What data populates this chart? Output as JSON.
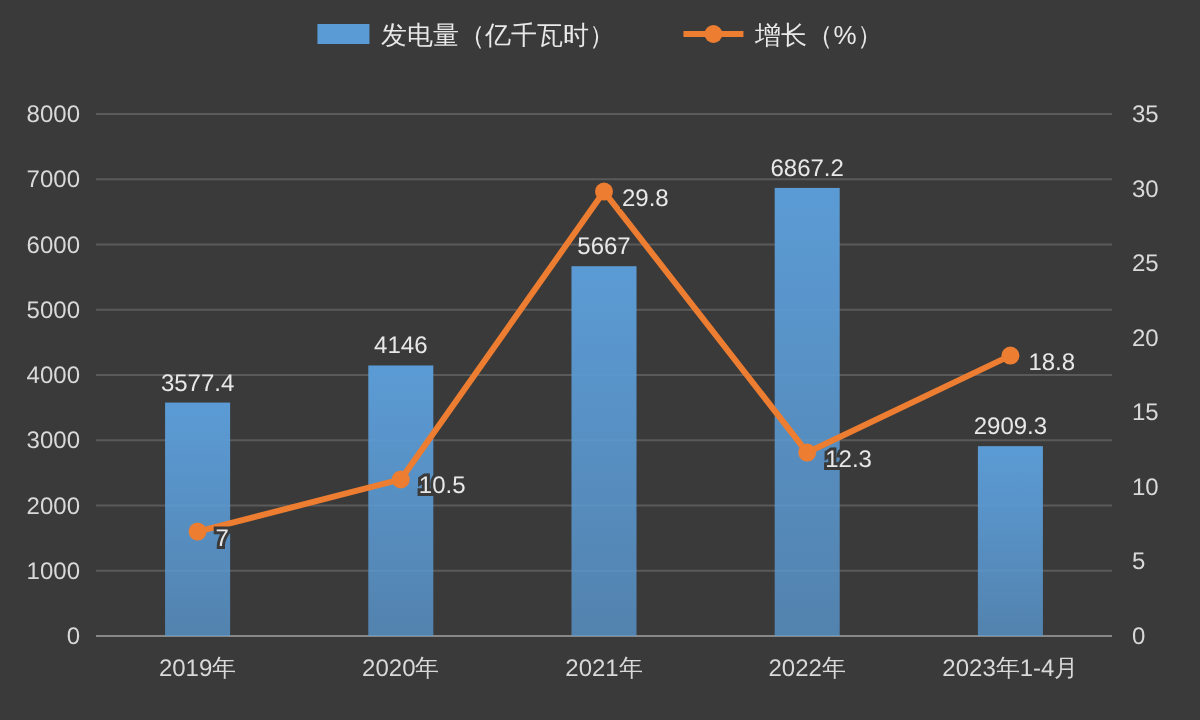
{
  "chart_data": {
    "type": "bar",
    "categories": [
      "2019年",
      "2020年",
      "2021年",
      "2022年",
      "2023年1-4月"
    ],
    "series": [
      {
        "name": "发电量（亿千瓦时）",
        "color": "#5b9bd5",
        "values": [
          3577.4,
          4146,
          5667,
          6867.2,
          2909.3
        ]
      },
      {
        "name": "增长（%）",
        "type": "line",
        "axis": "y2",
        "color": "#ed7d31",
        "marker": "circle",
        "values": [
          7,
          10.5,
          29.8,
          12.3,
          18.8
        ]
      }
    ],
    "ylim": [
      0,
      8000
    ],
    "yticks": [
      0,
      1000,
      2000,
      3000,
      4000,
      5000,
      6000,
      7000,
      8000
    ],
    "y2lim": [
      0,
      35
    ],
    "y2ticks": [
      0,
      5,
      10,
      15,
      20,
      25,
      30,
      35
    ],
    "grid": "y",
    "legend": "top",
    "data_labels": true
  }
}
